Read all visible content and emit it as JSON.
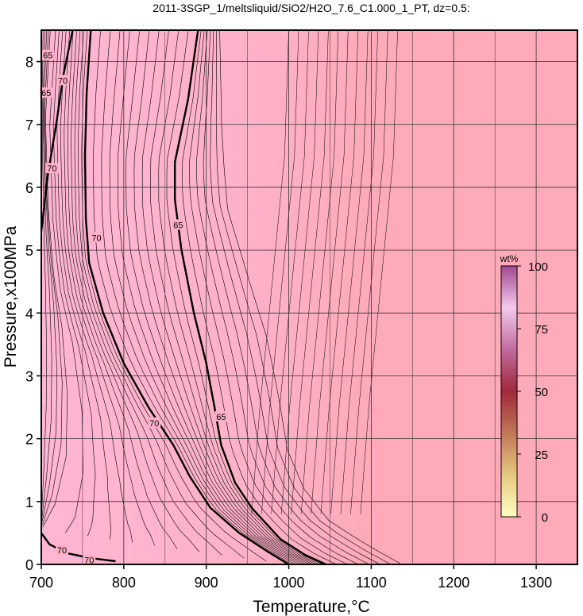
{
  "chart_data": {
    "type": "contour",
    "title": "2011-3SGP_1/meltsliquid/SiO2/H2O_7.6_C1.000_1_PT, dz=0.5:",
    "xlabel": "Temperature,°C",
    "ylabel": "Pressure,x100MPa",
    "xlim": [
      700,
      1350
    ],
    "ylim": [
      0,
      8.5
    ],
    "xticks": [
      "700",
      "800",
      "900",
      "1000",
      "1100",
      "1200",
      "1300"
    ],
    "yticks": [
      "0",
      "1",
      "2",
      "3",
      "4",
      "5",
      "6",
      "7",
      "8"
    ],
    "grid": true,
    "contour_interval": 0.5,
    "colors": {
      "field_high_T": "#ffaab8",
      "field_low_T": "#ffb4d0",
      "grid": "#333333",
      "line": "#000000"
    },
    "bold_contours": [
      {
        "level": 70,
        "label": "70",
        "points": [
          [
            760,
            8.5
          ],
          [
            755,
            7.5
          ],
          [
            753,
            6.5
          ],
          [
            754,
            5.5
          ],
          [
            758,
            4.8
          ],
          [
            775,
            4.0
          ],
          [
            800,
            3.2
          ],
          [
            830,
            2.5
          ],
          [
            860,
            1.9
          ],
          [
            880,
            1.4
          ],
          [
            905,
            0.9
          ],
          [
            940,
            0.5
          ],
          [
            975,
            0.2
          ],
          [
            1000,
            0.0
          ]
        ]
      },
      {
        "level": 65,
        "label": "65",
        "points": [
          [
            890,
            8.5
          ],
          [
            878,
            7.4
          ],
          [
            862,
            6.4
          ],
          [
            862,
            5.8
          ],
          [
            870,
            5.0
          ],
          [
            885,
            4.0
          ],
          [
            900,
            3.2
          ],
          [
            910,
            2.5
          ],
          [
            918,
            1.9
          ],
          [
            935,
            1.3
          ],
          [
            955,
            0.9
          ],
          [
            990,
            0.4
          ],
          [
            1020,
            0.15
          ],
          [
            1045,
            0.0
          ]
        ]
      },
      {
        "level": 70,
        "label": "70",
        "points": [
          [
            738,
            8.5
          ],
          [
            727,
            7.8
          ],
          [
            718,
            7.0
          ],
          [
            708,
            6.2
          ],
          [
            700,
            5.3
          ]
        ]
      },
      {
        "level": 70,
        "label": "70",
        "points": [
          [
            700,
            0.5
          ],
          [
            710,
            0.32
          ],
          [
            730,
            0.18
          ],
          [
            760,
            0.1
          ],
          [
            790,
            0.05
          ]
        ]
      }
    ],
    "contour_labels": [
      {
        "text": "70",
        "x": 767,
        "y": 5.2
      },
      {
        "text": "65",
        "x": 866,
        "y": 5.4
      },
      {
        "text": "70",
        "x": 837,
        "y": 2.25
      },
      {
        "text": "65",
        "x": 918,
        "y": 2.35
      },
      {
        "text": "70",
        "x": 713,
        "y": 6.3
      },
      {
        "text": "70",
        "x": 726,
        "y": 7.7
      },
      {
        "text": "65",
        "x": 706,
        "y": 7.5
      },
      {
        "text": "65",
        "x": 708,
        "y": 8.1
      },
      {
        "text": "70",
        "x": 725,
        "y": 0.23
      },
      {
        "text": "70",
        "x": 758,
        "y": 0.07
      }
    ],
    "colorbar": {
      "unit": "wt%",
      "range": [
        0,
        100
      ],
      "ticks": [
        "0",
        "25",
        "50",
        "75",
        "100"
      ],
      "stops": [
        "#ffffc0",
        "#e6c880",
        "#c07858",
        "#a0283a",
        "#c06ca0",
        "#f4c8ec",
        "#a04890"
      ]
    }
  }
}
